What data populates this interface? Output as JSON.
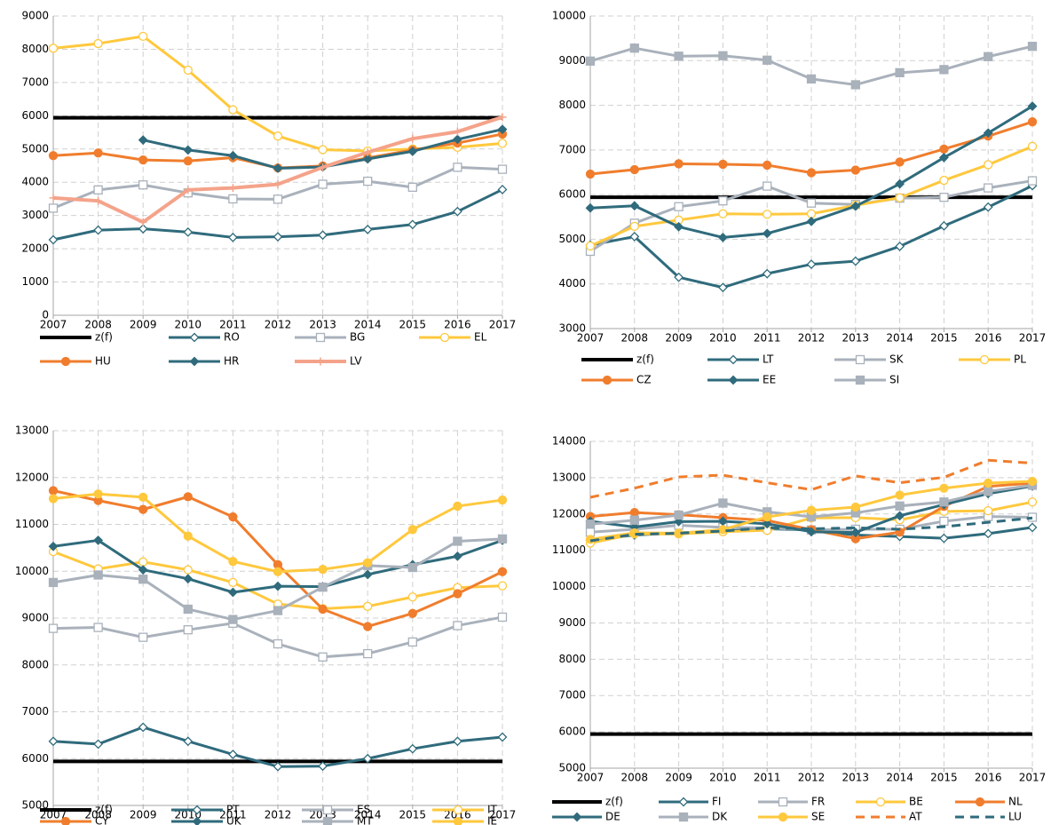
{
  "chart_data": [
    {
      "type": "line",
      "x": [
        2007,
        2008,
        2009,
        2010,
        2011,
        2012,
        2013,
        2014,
        2015,
        2016,
        2017
      ],
      "xlim": [
        2007,
        2017
      ],
      "xticks": [
        2007,
        2008,
        2009,
        2010,
        2011,
        2012,
        2013,
        2014,
        2015,
        2016,
        2017
      ],
      "ylim": [
        0,
        9000
      ],
      "yticks": [
        0,
        1000,
        2000,
        3000,
        4000,
        5000,
        6000,
        7000,
        8000,
        9000
      ],
      "grid": true,
      "series": [
        {
          "name": "z(f)",
          "color": "#000000",
          "marker": "none",
          "linewidth": 4,
          "values": [
            5940,
            5940,
            5940,
            5940,
            5940,
            5940,
            5940,
            5940,
            5940,
            5940,
            5940
          ]
        },
        {
          "name": "RO",
          "color": "#2f6b7c",
          "marker": "diamond-open",
          "linewidth": 3,
          "values": [
            2270,
            2560,
            2600,
            2500,
            2340,
            2360,
            2410,
            2580,
            2730,
            3120,
            3780
          ]
        },
        {
          "name": "BG",
          "color": "#a9b1bb",
          "marker": "square-open",
          "linewidth": 3,
          "values": [
            3220,
            3770,
            3920,
            3680,
            3500,
            3490,
            3940,
            4030,
            3850,
            4450,
            4390
          ]
        },
        {
          "name": "EL",
          "color": "#ffc83d",
          "marker": "circle-open",
          "linewidth": 3,
          "values": [
            8030,
            8170,
            8390,
            7370,
            6180,
            5390,
            4980,
            4940,
            5000,
            5050,
            5170
          ]
        },
        {
          "name": "HU",
          "color": "#f07d2d",
          "marker": "circle-filled",
          "linewidth": 3,
          "values": [
            4800,
            4880,
            4670,
            4640,
            4740,
            4430,
            4490,
            4730,
            4970,
            5180,
            5450
          ]
        },
        {
          "name": "HR",
          "color": "#2f6b7c",
          "marker": "diamond-filled",
          "linewidth": 3,
          "values": [
            null,
            null,
            5270,
            4970,
            4800,
            4420,
            4460,
            4700,
            4930,
            5290,
            5590
          ]
        },
        {
          "name": "LV",
          "color": "#f4a38a",
          "marker": "plus",
          "linewidth": 4,
          "values": [
            3530,
            3440,
            2800,
            3770,
            3830,
            3940,
            4450,
            4900,
            5310,
            5520,
            5960
          ]
        }
      ]
    },
    {
      "type": "line",
      "x": [
        2007,
        2008,
        2009,
        2010,
        2011,
        2012,
        2013,
        2014,
        2015,
        2016,
        2017
      ],
      "xlim": [
        2007,
        2017
      ],
      "xticks": [
        2007,
        2008,
        2009,
        2010,
        2011,
        2012,
        2013,
        2014,
        2015,
        2016,
        2017
      ],
      "ylim": [
        3000,
        10000
      ],
      "yticks": [
        3000,
        4000,
        5000,
        6000,
        7000,
        8000,
        9000,
        10000
      ],
      "grid": true,
      "series": [
        {
          "name": "z(f)",
          "color": "#000000",
          "marker": "none",
          "linewidth": 4,
          "values": [
            5940,
            5940,
            5940,
            5940,
            5940,
            5940,
            5940,
            5940,
            5940,
            5940,
            5940
          ]
        },
        {
          "name": "LT",
          "color": "#2f6b7c",
          "marker": "diamond-open",
          "linewidth": 3,
          "values": [
            4870,
            5060,
            4150,
            3920,
            4230,
            4440,
            4510,
            4840,
            5300,
            5720,
            6200
          ]
        },
        {
          "name": "SK",
          "color": "#a9b1bb",
          "marker": "square-open",
          "linewidth": 3,
          "values": [
            4730,
            5360,
            5730,
            5860,
            6190,
            5810,
            5780,
            5920,
            5940,
            6150,
            6310
          ]
        },
        {
          "name": "PL",
          "color": "#ffc83d",
          "marker": "circle-open",
          "linewidth": 3,
          "values": [
            4850,
            5290,
            5430,
            5570,
            5560,
            5570,
            5760,
            5930,
            6320,
            6670,
            7080
          ]
        },
        {
          "name": "CZ",
          "color": "#f07d2d",
          "marker": "circle-filled",
          "linewidth": 3,
          "values": [
            6460,
            6560,
            6690,
            6680,
            6660,
            6490,
            6550,
            6730,
            7020,
            7310,
            7630
          ]
        },
        {
          "name": "EE",
          "color": "#2f6b7c",
          "marker": "diamond-filled",
          "linewidth": 3,
          "values": [
            5700,
            5750,
            5280,
            5040,
            5130,
            5400,
            5740,
            6240,
            6830,
            7380,
            7980
          ]
        },
        {
          "name": "SI",
          "color": "#a9b1bb",
          "marker": "square-filled",
          "linewidth": 3,
          "values": [
            8990,
            9280,
            9100,
            9110,
            9010,
            8590,
            8460,
            8730,
            8800,
            9090,
            9320
          ]
        }
      ]
    },
    {
      "type": "line",
      "x": [
        2007,
        2008,
        2009,
        2010,
        2011,
        2012,
        2013,
        2014,
        2015,
        2016,
        2017
      ],
      "xlim": [
        2007,
        2017
      ],
      "xticks": [
        2007,
        2008,
        2009,
        2010,
        2011,
        2012,
        2013,
        2014,
        2015,
        2016,
        2017
      ],
      "ylim": [
        5000,
        13000
      ],
      "yticks": [
        5000,
        6000,
        7000,
        8000,
        9000,
        10000,
        11000,
        12000,
        13000
      ],
      "grid": true,
      "series": [
        {
          "name": "z(f)",
          "color": "#000000",
          "marker": "none",
          "linewidth": 4,
          "values": [
            5940,
            5940,
            5940,
            5940,
            5940,
            5940,
            5940,
            5940,
            5940,
            5940,
            5940
          ]
        },
        {
          "name": "PT",
          "color": "#2f6b7c",
          "marker": "diamond-open",
          "linewidth": 3,
          "values": [
            6370,
            6310,
            6670,
            6370,
            6090,
            5830,
            5840,
            6000,
            6210,
            6370,
            6460
          ]
        },
        {
          "name": "ES",
          "color": "#a9b1bb",
          "marker": "square-open",
          "linewidth": 3,
          "values": [
            8780,
            8800,
            8590,
            8750,
            8890,
            8450,
            8170,
            8240,
            8490,
            8840,
            9020
          ]
        },
        {
          "name": "IT",
          "color": "#ffc83d",
          "marker": "circle-open",
          "linewidth": 3,
          "values": [
            10420,
            10050,
            10200,
            10030,
            9760,
            9300,
            9200,
            9250,
            9450,
            9650,
            9690
          ]
        },
        {
          "name": "CY",
          "color": "#f07d2d",
          "marker": "circle-filled",
          "linewidth": 3,
          "values": [
            11720,
            11510,
            11320,
            11590,
            11160,
            10140,
            9190,
            8820,
            9100,
            9520,
            9990
          ]
        },
        {
          "name": "UK",
          "color": "#2f6b7c",
          "marker": "diamond-filled",
          "linewidth": 3,
          "values": [
            10530,
            10660,
            10030,
            9840,
            9550,
            9680,
            9670,
            9930,
            10140,
            10320,
            10660
          ]
        },
        {
          "name": "MT",
          "color": "#a9b1bb",
          "marker": "square-filled",
          "linewidth": 3,
          "values": [
            9760,
            9920,
            9830,
            9190,
            8970,
            9160,
            9660,
            10120,
            10080,
            10640,
            10690
          ]
        },
        {
          "name": "IE",
          "color": "#ffc83d",
          "marker": "circle-filled",
          "linewidth": 3,
          "values": [
            11550,
            11650,
            11580,
            10750,
            10210,
            9990,
            10040,
            10180,
            10890,
            11390,
            11520
          ]
        }
      ]
    },
    {
      "type": "line",
      "x": [
        2007,
        2008,
        2009,
        2010,
        2011,
        2012,
        2013,
        2014,
        2015,
        2016,
        2017
      ],
      "xlim": [
        2007,
        2017
      ],
      "xticks": [
        2007,
        2008,
        2009,
        2010,
        2011,
        2012,
        2013,
        2014,
        2015,
        2016,
        2017
      ],
      "ylim": [
        5000,
        14000
      ],
      "yticks": [
        5000,
        6000,
        7000,
        8000,
        9000,
        10000,
        11000,
        12000,
        13000,
        14000
      ],
      "grid": true,
      "series": [
        {
          "name": "z(f)",
          "color": "#000000",
          "marker": "none",
          "linewidth": 4,
          "values": [
            5940,
            5940,
            5940,
            5940,
            5940,
            5940,
            5940,
            5940,
            5940,
            5940,
            5940
          ]
        },
        {
          "name": "FI",
          "color": "#2f6b7c",
          "marker": "diamond-open",
          "linewidth": 3,
          "values": [
            11280,
            11420,
            11480,
            11530,
            11590,
            11560,
            11420,
            11380,
            11330,
            11460,
            11630
          ]
        },
        {
          "name": "FR",
          "color": "#a9b1bb",
          "marker": "square-open",
          "linewidth": 3,
          "values": [
            11500,
            11580,
            11690,
            11630,
            11620,
            11560,
            11580,
            11580,
            11800,
            11930,
            11910
          ]
        },
        {
          "name": "BE",
          "color": "#ffc83d",
          "marker": "circle-open",
          "linewidth": 3,
          "values": [
            11200,
            11450,
            11450,
            11510,
            11550,
            11890,
            11900,
            11840,
            12070,
            12090,
            12330
          ]
        },
        {
          "name": "NL",
          "color": "#f07d2d",
          "marker": "circle-filled",
          "linewidth": 3,
          "values": [
            11930,
            12040,
            11980,
            11900,
            11820,
            11570,
            11320,
            11500,
            12210,
            12760,
            12850
          ]
        },
        {
          "name": "DE",
          "color": "#2f6b7c",
          "marker": "diamond-filled",
          "linewidth": 3,
          "values": [
            11800,
            11640,
            11790,
            11800,
            11730,
            11510,
            11490,
            11950,
            12260,
            12560,
            12770
          ]
        },
        {
          "name": "DK",
          "color": "#a9b1bb",
          "marker": "square-filled",
          "linewidth": 3,
          "values": [
            11720,
            11830,
            11970,
            12300,
            12060,
            11920,
            12030,
            12220,
            12330,
            12620,
            12790
          ]
        },
        {
          "name": "SE",
          "color": "#ffc83d",
          "marker": "circle-filled",
          "linewidth": 3,
          "values": [
            11300,
            11480,
            11470,
            11570,
            11920,
            12100,
            12190,
            12520,
            12710,
            12850,
            12900
          ]
        },
        {
          "name": "AT",
          "color": "#f07d2d",
          "marker": "none",
          "dashed": true,
          "linewidth": 3,
          "values": [
            12460,
            12710,
            13020,
            13070,
            12860,
            12670,
            13050,
            12860,
            13010,
            13480,
            13400
          ]
        },
        {
          "name": "LU",
          "color": "#2f6b7c",
          "marker": "none",
          "dashed": true,
          "linewidth": 3,
          "values": [
            11260,
            11440,
            11470,
            11530,
            11620,
            11590,
            11620,
            11580,
            11650,
            11770,
            11890
          ]
        }
      ]
    }
  ]
}
